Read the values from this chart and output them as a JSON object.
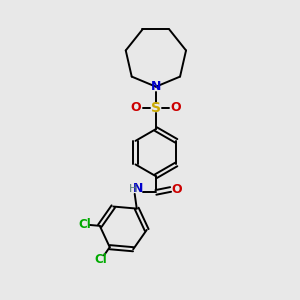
{
  "background_color": "#e8e8e8",
  "bond_color": "#000000",
  "N_color": "#0000cc",
  "O_color": "#cc0000",
  "S_color": "#ccaa00",
  "Cl_color": "#00aa00",
  "H_color": "#557777",
  "figsize": [
    3.0,
    3.0
  ],
  "dpi": 100,
  "xlim": [
    0,
    10
  ],
  "ylim": [
    0,
    10
  ]
}
